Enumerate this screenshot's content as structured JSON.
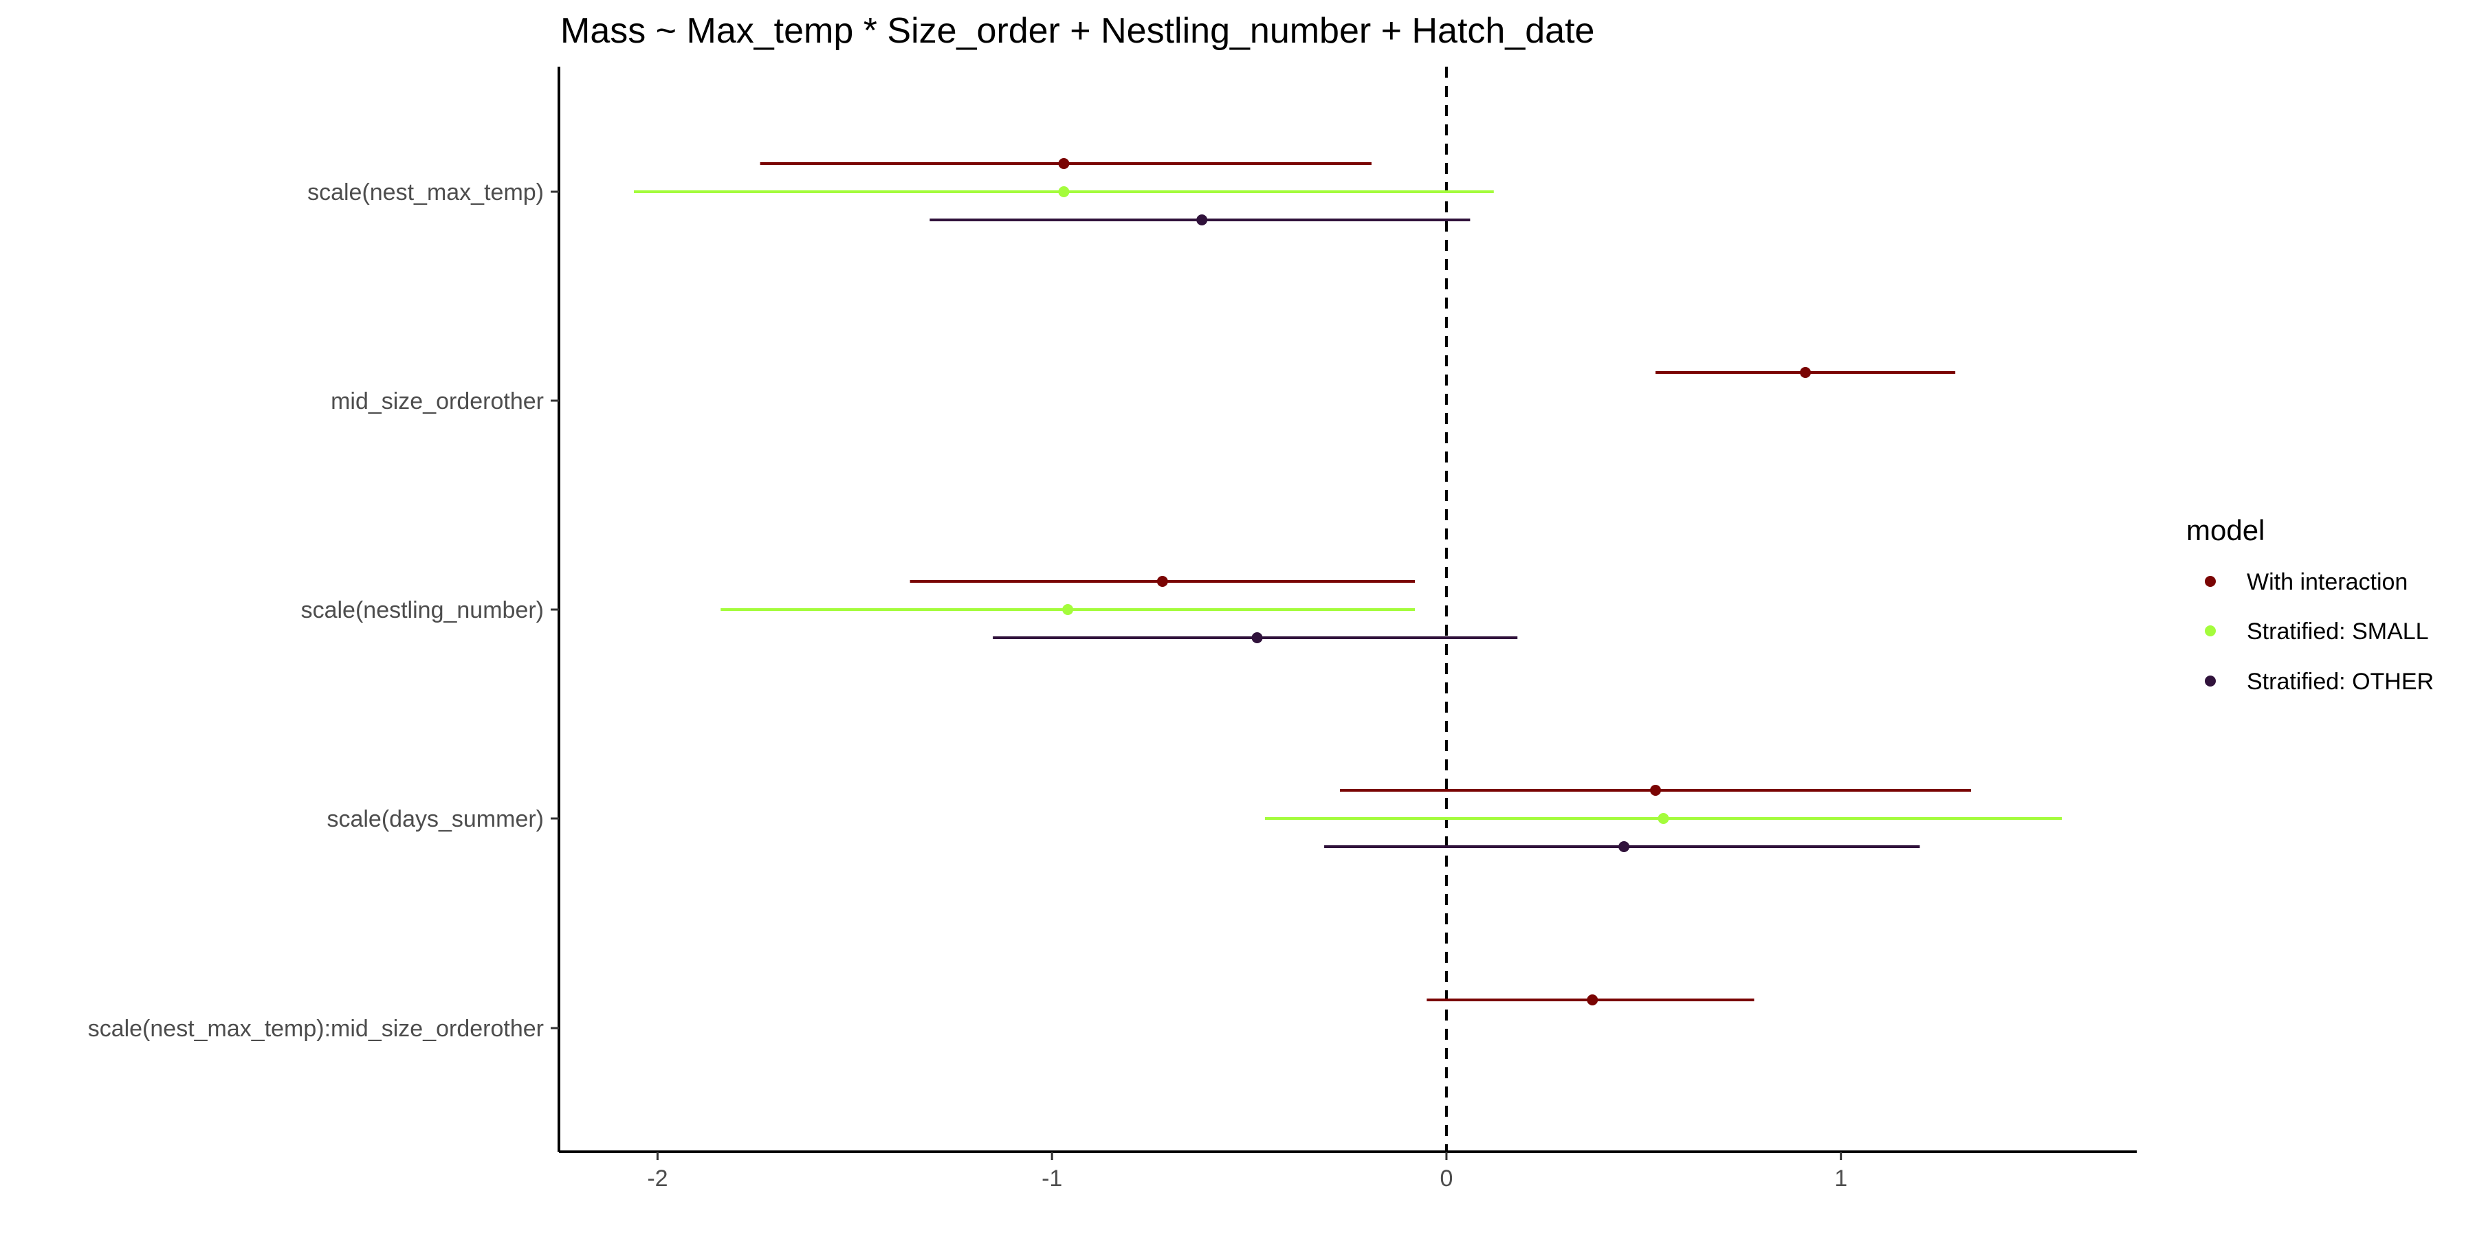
{
  "chart_data": {
    "type": "forest",
    "title": "Mass ~ Max_temp * Size_order + Nestling_number + Hatch_date",
    "xlabel": "",
    "ylabel": "",
    "xlim": [
      -2.25,
      1.75
    ],
    "x_ticks": [
      -2,
      -1,
      0,
      1
    ],
    "x_tick_labels": [
      "-2",
      "-1",
      "0",
      "1"
    ],
    "reference_line": 0,
    "grid": false,
    "legend_position": "right",
    "legend_title": "model",
    "terms": [
      "scale(nest_max_temp)",
      "mid_size_orderother",
      "scale(nestling_number)",
      "scale(days_summer)",
      "scale(nest_max_temp):mid_size_orderother"
    ],
    "series": [
      {
        "name": "With interaction",
        "color": "#7a0403",
        "points": [
          {
            "term": "scale(nest_max_temp)",
            "estimate": -0.97,
            "low": -1.74,
            "high": -0.19
          },
          {
            "term": "mid_size_orderother",
            "estimate": 0.91,
            "low": 0.53,
            "high": 1.29
          },
          {
            "term": "scale(nestling_number)",
            "estimate": -0.72,
            "low": -1.36,
            "high": -0.08
          },
          {
            "term": "scale(days_summer)",
            "estimate": 0.53,
            "low": -0.27,
            "high": 1.33
          },
          {
            "term": "scale(nest_max_temp):mid_size_orderother",
            "estimate": 0.37,
            "low": -0.05,
            "high": 0.78
          }
        ]
      },
      {
        "name": "Stratified: SMALL",
        "color": "#a4fc3c",
        "points": [
          {
            "term": "scale(nest_max_temp)",
            "estimate": -0.97,
            "low": -2.06,
            "high": 0.12
          },
          {
            "term": "scale(nestling_number)",
            "estimate": -0.96,
            "low": -1.84,
            "high": -0.08
          },
          {
            "term": "scale(days_summer)",
            "estimate": 0.55,
            "low": -0.46,
            "high": 1.56
          }
        ]
      },
      {
        "name": "Stratified: OTHER",
        "color": "#30123b",
        "points": [
          {
            "term": "scale(nest_max_temp)",
            "estimate": -0.62,
            "low": -1.31,
            "high": 0.06
          },
          {
            "term": "scale(nestling_number)",
            "estimate": -0.48,
            "low": -1.15,
            "high": 0.18
          },
          {
            "term": "scale(days_summer)",
            "estimate": 0.45,
            "low": -0.31,
            "high": 1.2
          }
        ]
      }
    ]
  }
}
